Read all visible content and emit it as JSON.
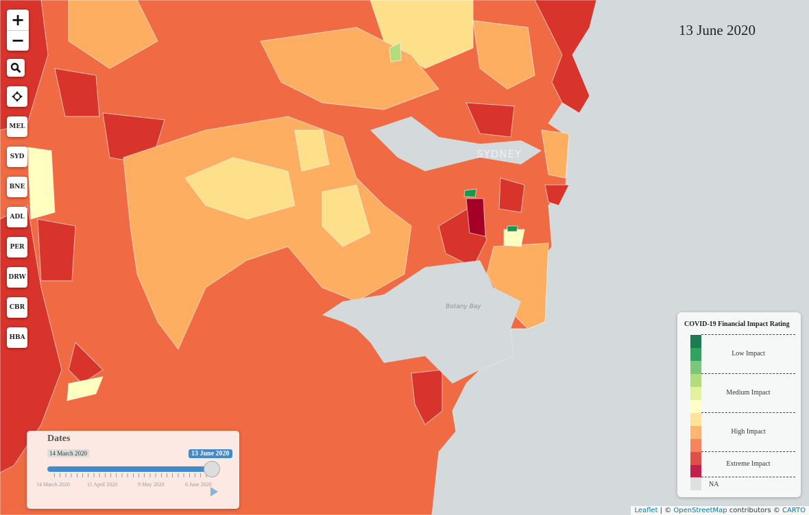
{
  "map": {
    "current_date": "13 June 2020",
    "labels": {
      "city": "SYDNEY",
      "bay": "Botany Bay"
    },
    "colors": {
      "water": "#d4dadc",
      "extreme": "#d73027",
      "high": "#f46d43",
      "moderate": "#fdae61",
      "light": "#fee08b",
      "pale": "#ffffbf",
      "dark_extreme": "#a50026",
      "low": "#1a9850"
    }
  },
  "controls": {
    "zoom_in": "+",
    "zoom_out": "−",
    "search_icon": "search-icon",
    "locate_icon": "crosshair-icon",
    "cities": [
      "MEL",
      "SYD",
      "BNE",
      "ADL",
      "PER",
      "DRW",
      "CBR",
      "HBA"
    ]
  },
  "legend": {
    "title": "COVID-19 Financial Impact Rating",
    "swatches": [
      "#1a7c50",
      "#31a25f",
      "#79c77a",
      "#b3dc7a",
      "#e3f0a0",
      "#ffffc8",
      "#fee39a",
      "#fdb66f",
      "#f7845a",
      "#e0504a",
      "#c21f4a"
    ],
    "bands": [
      "Low Impact",
      "Medium Impact",
      "High Impact",
      "Extreme Impact"
    ],
    "na_label": "NA",
    "na_color": "#e0e0e0"
  },
  "dates": {
    "title": "Dates",
    "min_label": "14 March 2020",
    "max_label": "13 June 2020",
    "value_fraction": 1.0,
    "tick_labels": [
      "14 March 2020",
      "11 April 2020",
      "9 May 2020",
      "6 June 2020"
    ]
  },
  "attribution": {
    "leaflet": "Leaflet",
    "sep": " | © ",
    "osm": "OpenStreetMap",
    "contrib": " contributors © ",
    "carto": "CARTO"
  }
}
